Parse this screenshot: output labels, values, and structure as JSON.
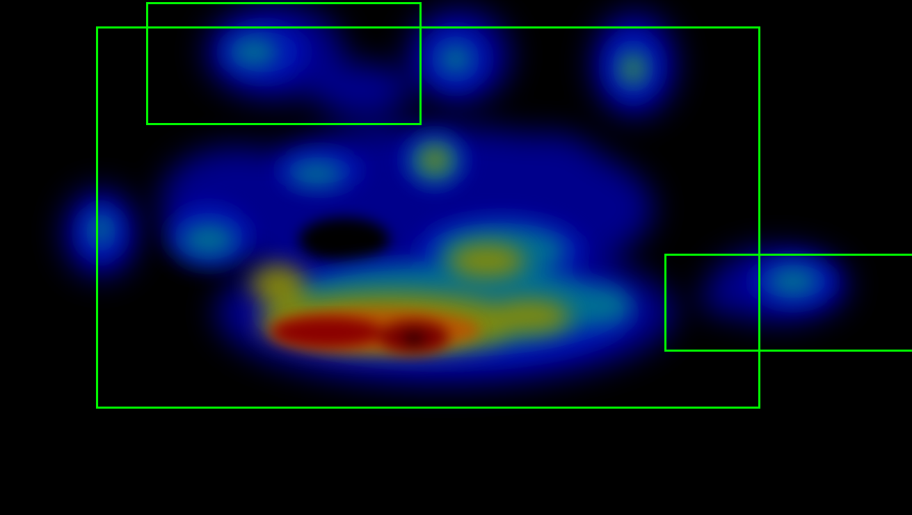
{
  "image": {
    "kind": "attention heatmap overlay",
    "background_color": "#000000",
    "colormap": "jet",
    "colormap_stops": [
      "#000000",
      "#00008b",
      "#0000cd",
      "#007f8c",
      "#8c8c00",
      "#cc6600",
      "#8b0000",
      "#000000"
    ],
    "box_color": "#00ff00"
  },
  "regions": [
    {
      "label": "",
      "shape": "rectangle"
    },
    {
      "label": "",
      "shape": "rectangle"
    },
    {
      "label": "",
      "shape": "rectangle"
    }
  ]
}
